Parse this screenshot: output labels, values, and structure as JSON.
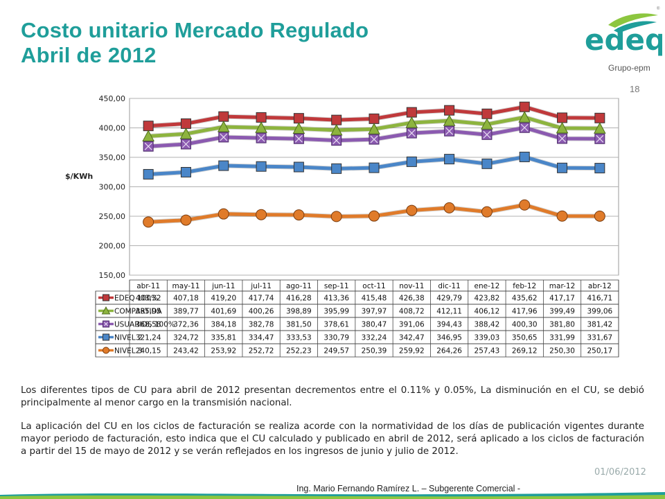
{
  "header": {
    "title_line1": "Costo unitario Mercado Regulado",
    "title_line2": "Abril de 2012",
    "logo_text": "edeq",
    "logo_subtext": "Grupo-epm",
    "page_number": "18"
  },
  "chart_data": {
    "type": "line",
    "categories": [
      "abr-11",
      "may-11",
      "jun-11",
      "jul-11",
      "ago-11",
      "sep-11",
      "oct-11",
      "nov-11",
      "dic-11",
      "ene-12",
      "feb-12",
      "mar-12",
      "abr-12"
    ],
    "ylabel": "$/KWh",
    "ylim": [
      150,
      450
    ],
    "yticks": [
      "450,00",
      "400,00",
      "350,00",
      "300,00",
      "250,00",
      "200,00",
      "150,00"
    ],
    "grid": true,
    "data_table": true,
    "series": [
      {
        "name": "EDEQ 100%",
        "color": "#c0393b",
        "marker": "square",
        "values": [
          403.32,
          407.18,
          419.2,
          417.74,
          416.28,
          413.36,
          415.48,
          426.38,
          429.79,
          423.82,
          435.62,
          417.17,
          416.71
        ],
        "labels": [
          "403,32",
          "407,18",
          "419,20",
          "417,74",
          "416,28",
          "413,36",
          "415,48",
          "426,38",
          "429,79",
          "423,82",
          "435,62",
          "417,17",
          "416,71"
        ]
      },
      {
        "name": "COMPARTIDA",
        "color": "#8db43e",
        "marker": "triangle",
        "values": [
          385.95,
          389.77,
          401.69,
          400.26,
          398.89,
          395.99,
          397.97,
          408.72,
          412.11,
          406.12,
          417.96,
          399.49,
          399.06
        ],
        "labels": [
          "385,95",
          "389,77",
          "401,69",
          "400,26",
          "398,89",
          "395,99",
          "397,97",
          "408,72",
          "412,11",
          "406,12",
          "417,96",
          "399,49",
          "399,06"
        ]
      },
      {
        "name": "USUARIOS 100%",
        "color": "#8b5ab0",
        "marker": "x-square",
        "values": [
          368.58,
          372.36,
          384.18,
          382.78,
          381.5,
          378.61,
          380.47,
          391.06,
          394.43,
          388.42,
          400.3,
          381.8,
          381.42
        ],
        "labels": [
          "368,58",
          "372,36",
          "384,18",
          "382,78",
          "381,50",
          "378,61",
          "380,47",
          "391,06",
          "394,43",
          "388,42",
          "400,30",
          "381,80",
          "381,42"
        ]
      },
      {
        "name": "NIVEL 2",
        "color": "#4a86c8",
        "marker": "square",
        "values": [
          321.24,
          324.72,
          335.81,
          334.47,
          333.53,
          330.79,
          332.24,
          342.47,
          346.95,
          339.03,
          350.65,
          331.99,
          331.67
        ],
        "labels": [
          "321,24",
          "324,72",
          "335,81",
          "334,47",
          "333,53",
          "330,79",
          "332,24",
          "342,47",
          "346,95",
          "339,03",
          "350,65",
          "331,99",
          "331,67"
        ]
      },
      {
        "name": "NIVEL 3",
        "color": "#e07b2a",
        "marker": "circle",
        "values": [
          240.15,
          243.42,
          253.92,
          252.72,
          252.23,
          249.57,
          250.39,
          259.92,
          264.26,
          257.43,
          269.12,
          250.3,
          250.17
        ],
        "labels": [
          "240,15",
          "243,42",
          "253,92",
          "252,72",
          "252,23",
          "249,57",
          "250,39",
          "259,92",
          "264,26",
          "257,43",
          "269,12",
          "250,30",
          "250,17"
        ]
      }
    ]
  },
  "body": {
    "paragraph1": "Los diferentes tipos de CU para abril de 2012 presentan decrementos entre el 0.11% y 0.05%, La disminución en el CU, se debió principalmente al menor cargo en la transmisión nacional.",
    "paragraph2": "La aplicación del CU en los ciclos de facturación se realiza acorde con la normatividad de los días de publicación vigentes durante mayor periodo de facturación, esto indica que el CU calculado y publicado en abril de 2012, será aplicado a los ciclos de facturación a partir del 15 de mayo de 2012 y se verán reflejados en los ingresos de junio y julio de 2012."
  },
  "footer": {
    "date": "01/06/2012",
    "author": "Ing. Mario Fernando Ramírez L. – Subgerente Comercial -"
  }
}
